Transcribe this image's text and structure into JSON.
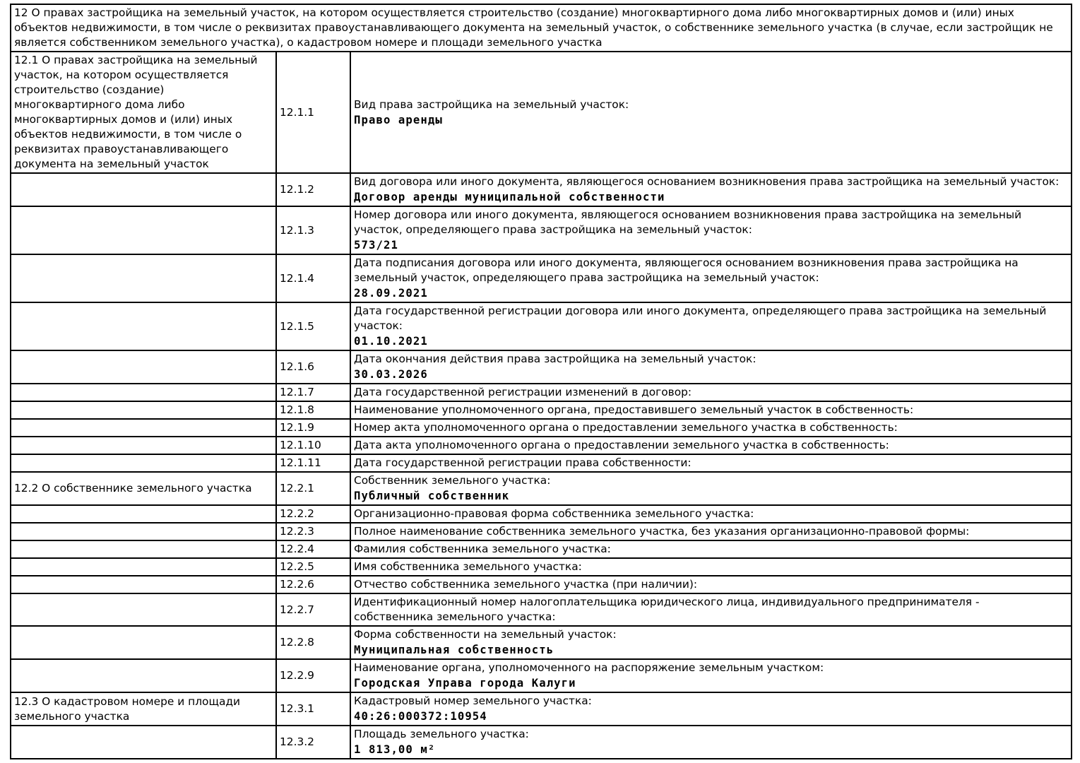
{
  "table": {
    "header": "12 О правах застройщика на земельный участок, на котором осуществляется строительство (создание) многоквартирного дома либо многоквартирных домов и (или) иных объектов недвижимости, в том числе о реквизитах правоустанавливающего документа на земельный участок, о собственнике земельного участка (в случае, если застройщик не является собственником земельного участка), о кадастровом номере и площади земельного участка",
    "rows": [
      {
        "left": "12.1 О правах застройщика на земельный участок, на котором осуществляется строительство (создание) многоквартирного дома либо многоквартирных домов и (или) иных объектов недвижимости, в том числе о реквизитах правоустанавливающего документа на земельный участок",
        "code": "12.1.1",
        "label": "Вид права застройщика на земельный участок:",
        "value": "Право аренды"
      },
      {
        "left": "",
        "code": "12.1.2",
        "label": "Вид договора или иного документа, являющегося основанием возникновения права застройщика на земельный участок:",
        "value": "Договор аренды муниципальной собственности"
      },
      {
        "left": "",
        "code": "12.1.3",
        "label": "Номер договора или иного документа, являющегося основанием возникновения права застройщика на земельный участок, определяющего права застройщика на земельный участок:",
        "value": "573/21"
      },
      {
        "left": "",
        "code": "12.1.4",
        "label": "Дата подписания договора или иного документа, являющегося основанием возникновения права застройщика на земельный участок, определяющего права застройщика на земельный участок:",
        "value": "28.09.2021"
      },
      {
        "left": "",
        "code": "12.1.5",
        "label": "Дата государственной регистрации договора или иного документа, определяющего права застройщика на земельный участок:",
        "value": "01.10.2021"
      },
      {
        "left": "",
        "code": "12.1.6",
        "label": "Дата окончания действия права застройщика на земельный участок:",
        "value": "30.03.2026"
      },
      {
        "left": "",
        "code": "12.1.7",
        "label": "Дата государственной регистрации изменений в договор:",
        "value": ""
      },
      {
        "left": "",
        "code": "12.1.8",
        "label": "Наименование уполномоченного органа, предоставившего земельный участок в собственность:",
        "value": ""
      },
      {
        "left": "",
        "code": "12.1.9",
        "label": "Номер акта уполномоченного органа о предоставлении земельного участка в собственность:",
        "value": ""
      },
      {
        "left": "",
        "code": "12.1.10",
        "label": "Дата акта уполномоченного органа о предоставлении земельного участка в собственность:",
        "value": ""
      },
      {
        "left": "",
        "code": "12.1.11",
        "label": "Дата государственной регистрации права собственности:",
        "value": ""
      },
      {
        "left": "12.2 О собственнике земельного участка",
        "code": "12.2.1",
        "label": "Собственник земельного участка:",
        "value": "Публичный собственник"
      },
      {
        "left": "",
        "code": "12.2.2",
        "label": "Организационно-правовая форма собственника земельного участка:",
        "value": ""
      },
      {
        "left": "",
        "code": "12.2.3",
        "label": "Полное наименование собственника земельного участка, без указания организационно-правовой формы:",
        "value": ""
      },
      {
        "left": "",
        "code": "12.2.4",
        "label": "Фамилия собственника земельного участка:",
        "value": ""
      },
      {
        "left": "",
        "code": "12.2.5",
        "label": "Имя собственника земельного участка:",
        "value": ""
      },
      {
        "left": "",
        "code": "12.2.6",
        "label": "Отчество собственника земельного участка (при наличии):",
        "value": ""
      },
      {
        "left": "",
        "code": "12.2.7",
        "label": "Идентификационный номер налогоплательщика юридического лица, индивидуального предпринимателя -\nсобственника земельного участка:",
        "value": ""
      },
      {
        "left": "",
        "code": "12.2.8",
        "label": "Форма собственности на земельный участок:",
        "value": "Муниципальная собственность"
      },
      {
        "left": "",
        "code": "12.2.9",
        "label": "Наименование органа, уполномоченного на распоряжение земельным участком:",
        "value": "Городская Управа города Калуги"
      },
      {
        "left": "12.3 О кадастровом номере и площади земельного участка",
        "code": "12.3.1",
        "label": "Кадастровый номер земельного участка:",
        "value": "40:26:000372:10954"
      },
      {
        "left": "",
        "code": "12.3.2",
        "label": "Площадь земельного участка:",
        "value": "1 813,00 м²"
      }
    ]
  }
}
